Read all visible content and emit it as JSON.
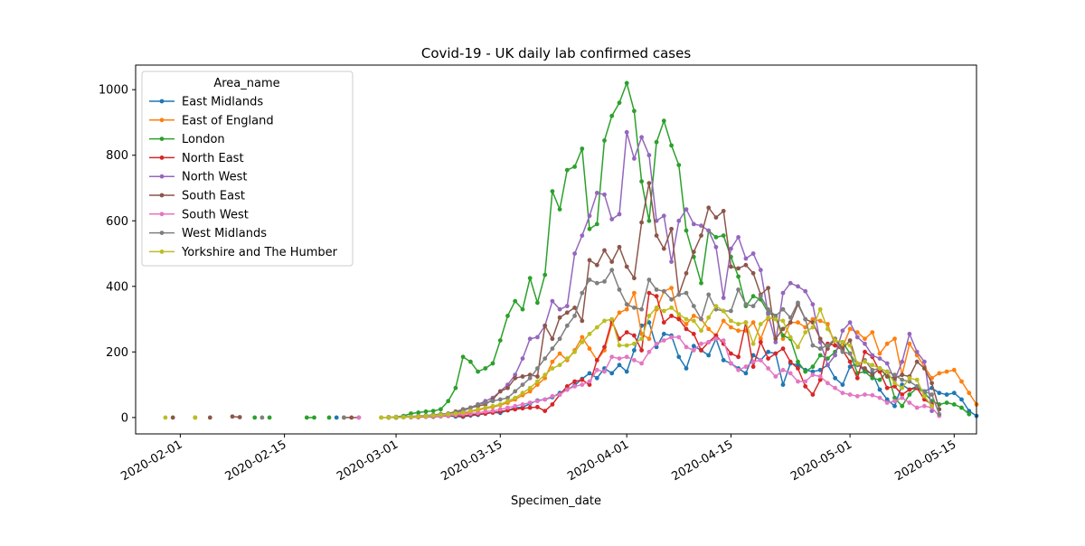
{
  "chart_data": {
    "type": "line",
    "title": "Covid-19 - UK daily lab confirmed cases",
    "xlabel": "Specimen_date",
    "ylabel": "",
    "x_start": "2020-01-30",
    "xlim": [
      "2020-01-26",
      "2020-05-18"
    ],
    "ylim": [
      -50,
      1075
    ],
    "x_ticks": [
      {
        "date": "2020-02-01",
        "label": "2020-02-01"
      },
      {
        "date": "2020-02-15",
        "label": "2020-02-15"
      },
      {
        "date": "2020-03-01",
        "label": "2020-03-01"
      },
      {
        "date": "2020-03-15",
        "label": "2020-03-15"
      },
      {
        "date": "2020-04-01",
        "label": "2020-04-01"
      },
      {
        "date": "2020-04-15",
        "label": "2020-04-15"
      },
      {
        "date": "2020-05-01",
        "label": "2020-05-01"
      },
      {
        "date": "2020-05-15",
        "label": "2020-05-15"
      }
    ],
    "y_ticks": [
      0,
      200,
      400,
      600,
      800,
      1000
    ],
    "legend": {
      "title": "Area_name",
      "position": "upper left"
    },
    "grid": false,
    "series": [
      {
        "name": "East Midlands",
        "color": "#1f77b4",
        "values": [
          null,
          null,
          null,
          null,
          null,
          null,
          null,
          null,
          null,
          null,
          null,
          null,
          null,
          null,
          null,
          null,
          null,
          null,
          null,
          null,
          null,
          null,
          null,
          0,
          null,
          null,
          null,
          null,
          null,
          null,
          1,
          0,
          1,
          2,
          3,
          3,
          2,
          4,
          5,
          3,
          2,
          6,
          8,
          12,
          15,
          14,
          22,
          30,
          31,
          42,
          52,
          55,
          62,
          75,
          85,
          98,
          118,
          135,
          120,
          150,
          135,
          160,
          140,
          205,
          280,
          290,
          215,
          255,
          250,
          185,
          150,
          218,
          205,
          190,
          240,
          175,
          165,
          150,
          135,
          190,
          175,
          200,
          195,
          100,
          165,
          160,
          145,
          140,
          145,
          160,
          120,
          100,
          155,
          165,
          140,
          135,
          85,
          55,
          35,
          100,
          85,
          95,
          80,
          90,
          75,
          70,
          75,
          55,
          20,
          5
        ]
      },
      {
        "name": "East of England",
        "color": "#ff7f0e",
        "values": [
          null,
          null,
          null,
          null,
          null,
          null,
          null,
          null,
          null,
          null,
          null,
          null,
          null,
          null,
          null,
          null,
          null,
          null,
          null,
          null,
          null,
          null,
          null,
          null,
          null,
          null,
          null,
          null,
          null,
          null,
          1,
          1,
          2,
          2,
          3,
          3,
          5,
          6,
          8,
          10,
          12,
          18,
          22,
          28,
          32,
          38,
          45,
          55,
          68,
          80,
          100,
          120,
          170,
          195,
          175,
          205,
          245,
          210,
          175,
          205,
          285,
          320,
          330,
          380,
          255,
          240,
          330,
          385,
          395,
          305,
          285,
          310,
          300,
          270,
          250,
          295,
          275,
          265,
          265,
          290,
          240,
          300,
          305,
          240,
          290,
          290,
          275,
          300,
          295,
          285,
          220,
          215,
          270,
          260,
          240,
          260,
          195,
          225,
          240,
          130,
          225,
          190,
          155,
          120,
          135,
          140,
          145,
          110,
          75,
          40
        ]
      },
      {
        "name": "London",
        "color": "#2ca02c",
        "values": [
          null,
          null,
          null,
          null,
          null,
          null,
          null,
          null,
          null,
          null,
          null,
          null,
          0,
          null,
          0,
          null,
          null,
          null,
          null,
          0,
          0,
          null,
          0,
          null,
          null,
          null,
          null,
          null,
          null,
          null,
          0,
          2,
          5,
          12,
          15,
          18,
          20,
          25,
          50,
          90,
          185,
          170,
          140,
          150,
          165,
          235,
          310,
          355,
          330,
          425,
          350,
          435,
          690,
          635,
          755,
          765,
          820,
          575,
          590,
          845,
          920,
          960,
          1020,
          935,
          720,
          600,
          840,
          905,
          830,
          770,
          570,
          490,
          410,
          570,
          550,
          555,
          490,
          430,
          340,
          370,
          360,
          320,
          310,
          250,
          240,
          170,
          140,
          155,
          190,
          180,
          200,
          230,
          195,
          135,
          140,
          120,
          115,
          140,
          60,
          35,
          70,
          90,
          75,
          50,
          40,
          45,
          40,
          30,
          10
        ]
      },
      {
        "name": "North East",
        "color": "#d62728",
        "values": [
          null,
          null,
          null,
          null,
          null,
          null,
          null,
          null,
          null,
          null,
          null,
          null,
          null,
          null,
          null,
          null,
          null,
          null,
          null,
          null,
          null,
          null,
          null,
          null,
          null,
          null,
          null,
          null,
          null,
          null,
          null,
          0,
          null,
          1,
          1,
          2,
          3,
          4,
          5,
          6,
          4,
          8,
          10,
          12,
          15,
          18,
          22,
          25,
          28,
          30,
          32,
          20,
          40,
          70,
          95,
          110,
          115,
          100,
          175,
          215,
          295,
          240,
          260,
          250,
          205,
          380,
          370,
          290,
          310,
          300,
          270,
          255,
          205,
          230,
          250,
          225,
          195,
          185,
          290,
          155,
          230,
          180,
          195,
          210,
          170,
          150,
          95,
          70,
          115,
          225,
          220,
          205,
          170,
          120,
          200,
          185,
          140,
          90,
          95,
          70,
          85,
          90,
          55,
          40
        ]
      },
      {
        "name": "North West",
        "color": "#9467bd",
        "values": [
          null,
          null,
          null,
          null,
          null,
          null,
          null,
          null,
          null,
          null,
          null,
          null,
          null,
          null,
          null,
          null,
          null,
          null,
          null,
          null,
          null,
          null,
          null,
          null,
          null,
          null,
          null,
          null,
          null,
          null,
          0,
          1,
          2,
          2,
          3,
          4,
          5,
          8,
          10,
          15,
          20,
          30,
          40,
          50,
          60,
          80,
          100,
          130,
          180,
          240,
          245,
          280,
          355,
          330,
          340,
          500,
          555,
          615,
          685,
          680,
          605,
          620,
          870,
          790,
          855,
          800,
          600,
          615,
          475,
          600,
          635,
          590,
          585,
          570,
          520,
          365,
          515,
          550,
          485,
          500,
          450,
          315,
          230,
          380,
          410,
          400,
          385,
          345,
          230,
          160,
          190,
          265,
          290,
          245,
          225,
          190,
          180,
          165,
          115,
          170,
          255,
          200,
          170,
          20
        ]
      },
      {
        "name": "South East",
        "color": "#8c564b",
        "values": [
          null,
          0,
          null,
          null,
          0,
          null,
          0,
          null,
          null,
          3,
          1,
          null,
          null,
          null,
          null,
          null,
          null,
          null,
          null,
          null,
          null,
          null,
          null,
          null,
          0,
          0,
          0,
          null,
          null,
          null,
          0,
          0,
          1,
          2,
          3,
          5,
          8,
          10,
          12,
          18,
          25,
          30,
          35,
          40,
          55,
          80,
          90,
          120,
          125,
          130,
          125,
          280,
          240,
          305,
          320,
          335,
          295,
          480,
          465,
          510,
          475,
          520,
          460,
          425,
          595,
          715,
          555,
          515,
          575,
          375,
          440,
          505,
          555,
          640,
          610,
          630,
          460,
          455,
          465,
          440,
          375,
          395,
          240,
          270,
          290,
          345,
          300,
          290,
          240,
          210,
          240,
          210,
          235,
          160,
          150,
          130,
          150,
          125,
          120,
          130,
          125,
          170,
          150,
          105,
          25
        ]
      },
      {
        "name": "South West",
        "color": "#e377c2",
        "values": [
          null,
          null,
          null,
          null,
          null,
          null,
          null,
          null,
          null,
          null,
          null,
          null,
          null,
          null,
          null,
          null,
          null,
          null,
          null,
          null,
          null,
          null,
          null,
          null,
          null,
          null,
          0,
          null,
          null,
          null,
          0,
          1,
          1,
          2,
          2,
          3,
          4,
          5,
          6,
          8,
          10,
          12,
          14,
          18,
          20,
          25,
          30,
          35,
          40,
          45,
          50,
          55,
          65,
          70,
          85,
          95,
          100,
          110,
          145,
          140,
          185,
          180,
          185,
          175,
          165,
          200,
          225,
          235,
          245,
          245,
          215,
          205,
          225,
          230,
          240,
          235,
          165,
          145,
          155,
          170,
          175,
          150,
          125,
          145,
          135,
          110,
          110,
          130,
          125,
          105,
          90,
          75,
          70,
          65,
          70,
          68,
          60,
          45,
          50,
          60,
          45,
          30,
          35,
          30,
          5
        ]
      },
      {
        "name": "West Midlands",
        "color": "#7f7f7f",
        "values": [
          null,
          null,
          null,
          null,
          null,
          null,
          null,
          null,
          null,
          null,
          null,
          null,
          null,
          0,
          null,
          null,
          null,
          null,
          null,
          null,
          null,
          null,
          null,
          null,
          0,
          null,
          null,
          null,
          null,
          0,
          0,
          1,
          2,
          3,
          5,
          6,
          8,
          10,
          12,
          15,
          25,
          30,
          40,
          45,
          50,
          55,
          60,
          80,
          100,
          120,
          150,
          180,
          210,
          240,
          280,
          310,
          380,
          420,
          410,
          415,
          450,
          390,
          345,
          335,
          330,
          420,
          390,
          385,
          360,
          375,
          380,
          340,
          300,
          375,
          330,
          325,
          325,
          390,
          345,
          340,
          370,
          330,
          310,
          330,
          305,
          350,
          300,
          220,
          210,
          220,
          240,
          200,
          195,
          160,
          175,
          145,
          150,
          140,
          130,
          115,
          110,
          95,
          80,
          70,
          10
        ]
      },
      {
        "name": "Yorkshire and The Humber",
        "color": "#bcbd22",
        "values": [
          0,
          null,
          null,
          null,
          0,
          null,
          null,
          null,
          null,
          null,
          null,
          null,
          null,
          null,
          null,
          null,
          null,
          null,
          null,
          null,
          null,
          null,
          null,
          null,
          null,
          null,
          null,
          null,
          null,
          0,
          0,
          1,
          1,
          2,
          3,
          4,
          6,
          8,
          10,
          12,
          15,
          20,
          25,
          30,
          35,
          40,
          50,
          60,
          75,
          90,
          110,
          130,
          150,
          160,
          180,
          200,
          230,
          255,
          275,
          295,
          300,
          220,
          220,
          225,
          240,
          310,
          335,
          325,
          335,
          315,
          300,
          295,
          265,
          305,
          340,
          325,
          295,
          285,
          290,
          225,
          285,
          305,
          300,
          295,
          245,
          215,
          260,
          275,
          330,
          270,
          235,
          230,
          220,
          165,
          170,
          160,
          150,
          140,
          105,
          90,
          120,
          115,
          65,
          35
        ]
      }
    ]
  }
}
